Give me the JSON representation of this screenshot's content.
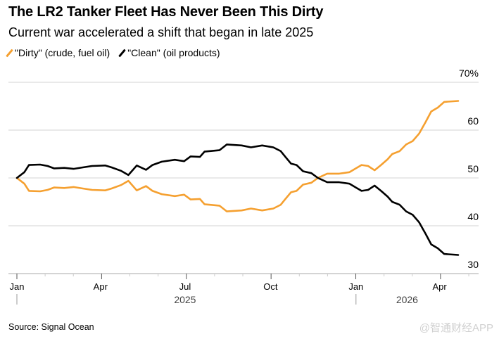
{
  "title": "The LR2 Tanker Fleet Has Never Been This Dirty",
  "subtitle": "Current war accelerated a shift that began in late 2025",
  "source": "Source: Signal Ocean",
  "watermark": "@智通财经APP",
  "chart_data": {
    "type": "line",
    "x_unit": "days since 2025-01-01",
    "ylim": [
      30,
      70
    ],
    "yticks": [
      30,
      40,
      50,
      60,
      70
    ],
    "ytick_labels": [
      "30",
      "40",
      "50",
      "60",
      "70%"
    ],
    "grid": true,
    "legend_position": "top-left",
    "xticks": [
      {
        "label": "Jan",
        "day": 0
      },
      {
        "label": "Apr",
        "day": 90
      },
      {
        "label": "Jul",
        "day": 181
      },
      {
        "label": "Oct",
        "day": 273
      },
      {
        "label": "Jan",
        "day": 365
      },
      {
        "label": "Apr",
        "day": 455
      }
    ],
    "years": [
      {
        "label": "2025",
        "start_day": 0,
        "center_day": 181
      },
      {
        "label": "2026",
        "start_day": 365,
        "center_day": 420
      }
    ],
    "series": [
      {
        "name": "\"Dirty\" (crude, fuel oil)",
        "color": "#f5a030",
        "x": [
          0,
          8,
          13,
          25,
          33,
          40,
          51,
          61,
          71,
          81,
          95,
          102,
          112,
          120,
          129,
          139,
          146,
          156,
          170,
          180,
          187,
          197,
          202,
          218,
          226,
          242,
          252,
          264,
          276,
          284,
          289,
          295,
          301,
          308,
          317,
          324,
          334,
          347,
          358,
          371,
          378,
          385,
          392,
          399,
          404,
          412,
          419,
          426,
          433,
          440,
          446,
          453,
          460,
          475
        ],
        "values": [
          50.0,
          48.8,
          47.3,
          47.2,
          47.5,
          48.0,
          47.9,
          48.1,
          47.8,
          47.5,
          47.4,
          47.8,
          48.5,
          49.4,
          47.4,
          48.3,
          47.3,
          46.6,
          46.2,
          46.5,
          45.5,
          45.6,
          44.5,
          44.2,
          43.0,
          43.2,
          43.6,
          43.2,
          43.6,
          44.4,
          45.6,
          47.0,
          47.3,
          48.6,
          49.0,
          50.0,
          50.9,
          50.9,
          51.2,
          52.7,
          52.5,
          51.6,
          52.7,
          53.9,
          55.0,
          55.6,
          57.0,
          57.7,
          59.3,
          61.7,
          63.9,
          64.7,
          65.9,
          66.1
        ]
      },
      {
        "name": "\"Clean\" (oil products)",
        "color": "#000000",
        "x": [
          0,
          8,
          13,
          25,
          33,
          40,
          51,
          61,
          71,
          81,
          95,
          102,
          112,
          120,
          129,
          139,
          146,
          156,
          170,
          180,
          187,
          197,
          202,
          218,
          226,
          242,
          252,
          264,
          276,
          284,
          289,
          295,
          301,
          308,
          317,
          324,
          334,
          347,
          358,
          371,
          378,
          385,
          392,
          399,
          404,
          412,
          419,
          426,
          433,
          440,
          446,
          453,
          460,
          475
        ],
        "values": [
          50.0,
          51.2,
          52.7,
          52.8,
          52.5,
          52.0,
          52.1,
          51.9,
          52.2,
          52.5,
          52.6,
          52.2,
          51.5,
          50.6,
          52.6,
          51.7,
          52.7,
          53.4,
          53.8,
          53.5,
          54.5,
          54.4,
          55.5,
          55.8,
          57.0,
          56.8,
          56.4,
          56.8,
          56.4,
          55.6,
          54.4,
          53.0,
          52.7,
          51.4,
          51.0,
          50.0,
          49.1,
          49.1,
          48.8,
          47.3,
          47.5,
          48.4,
          47.3,
          46.1,
          45.0,
          44.4,
          43.0,
          42.3,
          40.7,
          38.3,
          36.1,
          35.3,
          34.1,
          33.9
        ]
      }
    ]
  }
}
